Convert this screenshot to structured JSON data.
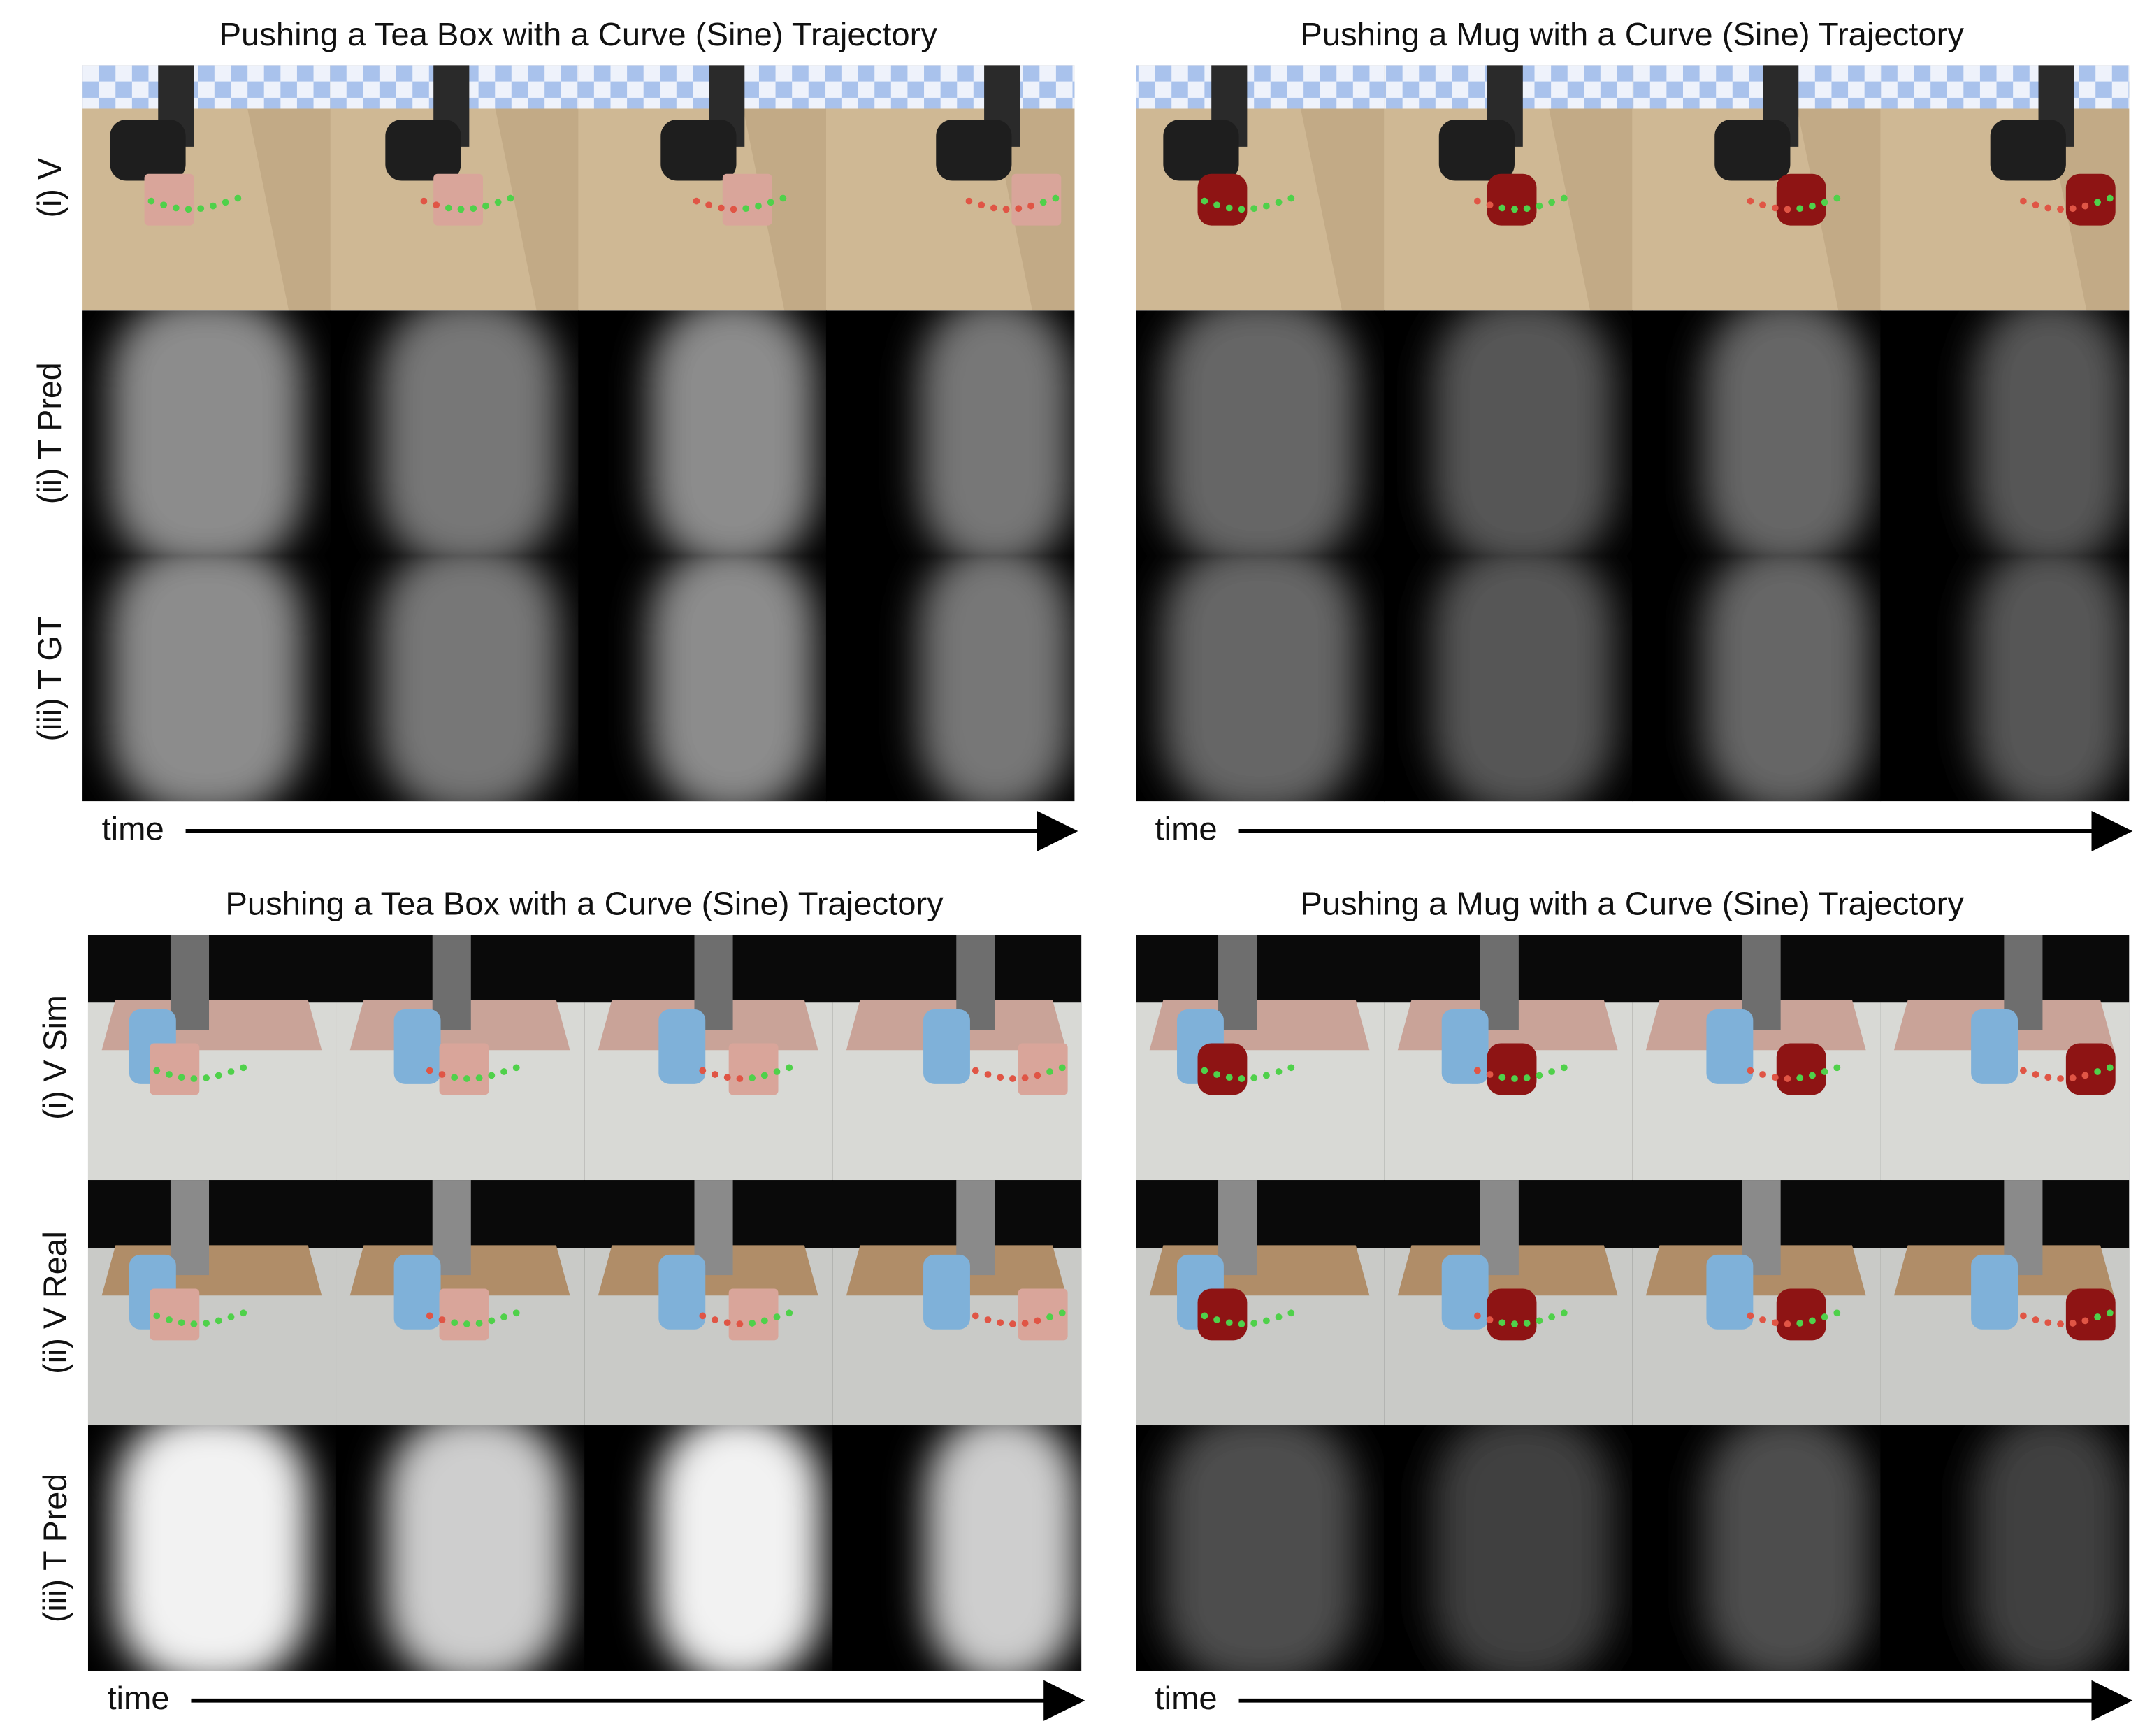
{
  "panels": [
    {
      "title": "Pushing a Tea Box with a Curve (Sine) Trajectory",
      "rows": [
        "(i) V",
        "(ii) T Pred",
        "(iii) T GT"
      ],
      "time_label": "time"
    },
    {
      "title": "Pushing a Mug with a Curve (Sine) Trajectory",
      "rows": [],
      "time_label": "time"
    },
    {
      "title": "Pushing a Tea Box with a Curve (Sine) Trajectory",
      "rows": [
        "(i) V Sim",
        "(ii) V Real",
        "(iii) T Pred"
      ],
      "time_label": "time"
    },
    {
      "title": "Pushing a Mug with a Curve (Sine) Trajectory",
      "rows": [],
      "time_label": "time"
    }
  ]
}
